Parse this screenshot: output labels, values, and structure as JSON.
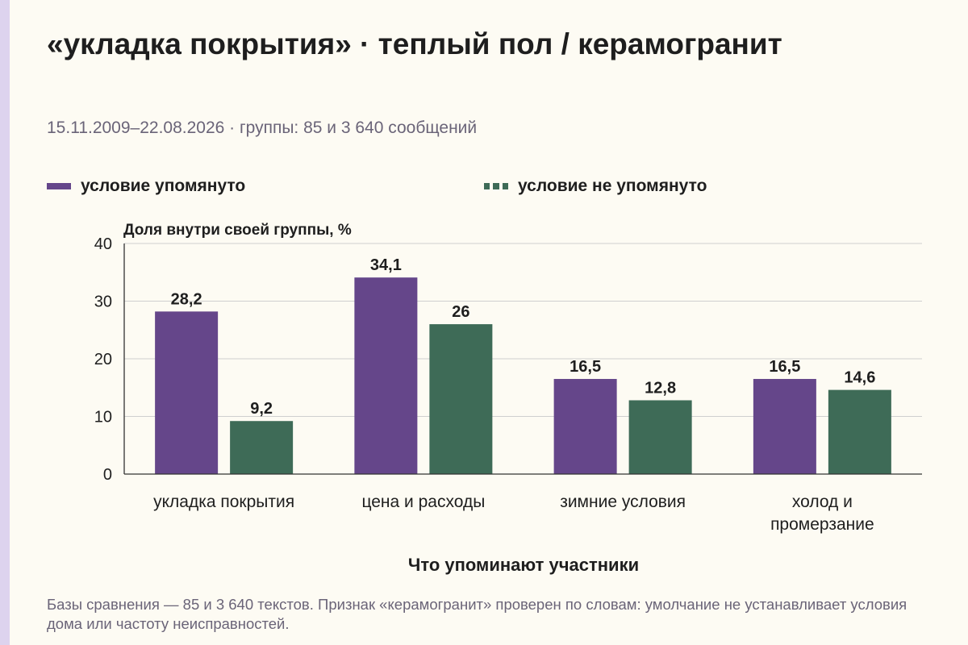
{
  "title": "«укладка покрытия» · теплый пол / керамогранит",
  "subtitle": "15.11.2009–22.08.2026 · группы: 85 и 3 640 сообщений",
  "note": "Базы сравнения — 85 и 3 640 текстов. Признак «керамогранит» проверен по словам: умолчание не устанавливает условия дома или частоту неисправностей.",
  "legend": [
    {
      "label": "условие упомянуто",
      "color": "#65468a",
      "style": "solid"
    },
    {
      "label": "условие не упомянуто",
      "color": "#3e6b57",
      "style": "dashed"
    }
  ],
  "chart_data": {
    "type": "bar",
    "title": "«укладка покрытия» · теплый пол / керамогранит",
    "xlabel": "Что упоминают участники",
    "ylabel": "Доля внутри своей группы, %",
    "ylim": [
      0,
      40
    ],
    "yticks": [
      0,
      10,
      20,
      30,
      40
    ],
    "grid": true,
    "legend_position": "top",
    "categories": [
      [
        "укладка покрытия"
      ],
      [
        "цена и расходы"
      ],
      [
        "зимние условия"
      ],
      [
        "холод и",
        "промерзание"
      ]
    ],
    "series": [
      {
        "name": "условие упомянуто",
        "color": "#65468a",
        "values": [
          28.2,
          34.1,
          16.5,
          16.5
        ],
        "labels": [
          "28,2",
          "34,1",
          "16,5",
          "16,5"
        ]
      },
      {
        "name": "условие не упомянуто",
        "color": "#3e6b57",
        "values": [
          9.2,
          26,
          12.8,
          14.6
        ],
        "labels": [
          "9,2",
          "26",
          "12,8",
          "14,6"
        ]
      }
    ]
  }
}
